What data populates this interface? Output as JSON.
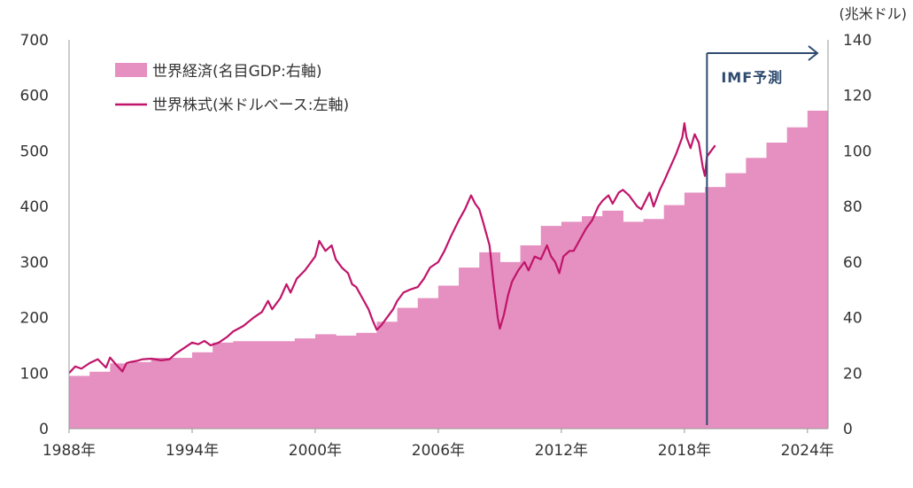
{
  "chart_data": {
    "type": "bar+line",
    "right_axis_unit": "(兆米ドル)",
    "left_axis": {
      "ylim": [
        0,
        700
      ],
      "ticks": [
        0,
        100,
        200,
        300,
        400,
        500,
        600,
        700
      ]
    },
    "right_axis": {
      "ylim": [
        0,
        140
      ],
      "ticks": [
        0,
        20,
        40,
        60,
        80,
        100,
        120,
        140
      ]
    },
    "x_axis": {
      "range": [
        1988,
        2025
      ],
      "ticks": [
        1988,
        1994,
        2000,
        2006,
        2012,
        2018,
        2024
      ],
      "tick_labels": [
        "1988年",
        "1994年",
        "2000年",
        "2006年",
        "2012年",
        "2018年",
        "2024年"
      ]
    },
    "legend": [
      {
        "label": "世界経済(名目GDP:右軸)",
        "kind": "area"
      },
      {
        "label": "世界株式(米ドルベース:左軸)",
        "kind": "line"
      }
    ],
    "colors": {
      "gdp": "#e590c0",
      "stock": "#c0146a",
      "annotation": "#2e4a6e",
      "axis": "#999999"
    },
    "annotation": {
      "text": "IMF予測",
      "year": 2019.1
    },
    "series": [
      {
        "name": "世界経済(名目GDP:右軸)",
        "axis": "right",
        "type": "step-area",
        "x": [
          1988,
          1989,
          1990,
          1991,
          1992,
          1993,
          1994,
          1995,
          1996,
          1997,
          1998,
          1999,
          2000,
          2001,
          2002,
          2003,
          2004,
          2005,
          2006,
          2007,
          2008,
          2009,
          2010,
          2011,
          2012,
          2013,
          2014,
          2015,
          2016,
          2017,
          2018,
          2019,
          2020,
          2021,
          2022,
          2023,
          2024
        ],
        "values": [
          19,
          20.5,
          23.5,
          24,
          25.5,
          25.5,
          27.5,
          31,
          31.5,
          31.5,
          31.5,
          32.5,
          34,
          33.5,
          34.5,
          38.5,
          43.5,
          47,
          51.5,
          58,
          63.5,
          60,
          66,
          73,
          74.5,
          76.5,
          78.5,
          74.5,
          75.5,
          80.5,
          85,
          87,
          92,
          97.5,
          103,
          108.5,
          114.5
        ]
      },
      {
        "name": "世界株式(米ドルベース:左軸)",
        "axis": "left",
        "type": "line",
        "x": [
          1988.0,
          1988.3,
          1988.6,
          1989.0,
          1989.4,
          1989.8,
          1990.0,
          1990.3,
          1990.6,
          1990.8,
          1991.0,
          1991.3,
          1991.6,
          1992.0,
          1992.5,
          1992.9,
          1993.2,
          1993.6,
          1994.0,
          1994.3,
          1994.6,
          1994.9,
          1995.3,
          1995.7,
          1996.0,
          1996.5,
          1997.0,
          1997.4,
          1997.7,
          1997.9,
          1998.3,
          1998.6,
          1998.8,
          1999.1,
          1999.5,
          1999.8,
          2000.0,
          2000.2,
          2000.5,
          2000.8,
          2001.0,
          2001.3,
          2001.6,
          2001.8,
          2002.0,
          2002.3,
          2002.6,
          2002.8,
          2003.0,
          2003.2,
          2003.5,
          2003.8,
          2004.0,
          2004.3,
          2004.6,
          2005.0,
          2005.3,
          2005.6,
          2006.0,
          2006.3,
          2006.6,
          2007.0,
          2007.3,
          2007.6,
          2007.8,
          2008.0,
          2008.2,
          2008.5,
          2008.7,
          2008.9,
          2009.0,
          2009.2,
          2009.4,
          2009.6,
          2009.9,
          2010.2,
          2010.4,
          2010.7,
          2011.0,
          2011.3,
          2011.5,
          2011.7,
          2011.9,
          2012.1,
          2012.4,
          2012.6,
          2012.9,
          2013.2,
          2013.5,
          2013.8,
          2014.0,
          2014.3,
          2014.5,
          2014.8,
          2015.0,
          2015.3,
          2015.5,
          2015.7,
          2015.9,
          2016.1,
          2016.3,
          2016.5,
          2016.8,
          2017.0,
          2017.3,
          2017.6,
          2017.9,
          2018.0,
          2018.1,
          2018.3,
          2018.5,
          2018.7,
          2018.9,
          2019.0,
          2019.1,
          2019.3,
          2019.5
        ],
        "values": [
          100,
          112,
          108,
          118,
          125,
          110,
          128,
          115,
          103,
          118,
          120,
          122,
          125,
          126,
          123,
          125,
          135,
          145,
          155,
          152,
          158,
          150,
          155,
          165,
          175,
          185,
          200,
          210,
          230,
          215,
          235,
          260,
          245,
          270,
          285,
          300,
          310,
          338,
          320,
          330,
          305,
          290,
          280,
          260,
          255,
          235,
          215,
          195,
          178,
          185,
          200,
          215,
          230,
          245,
          250,
          255,
          270,
          290,
          300,
          320,
          345,
          375,
          395,
          420,
          405,
          395,
          370,
          330,
          260,
          200,
          180,
          205,
          240,
          265,
          285,
          300,
          285,
          310,
          305,
          330,
          310,
          300,
          280,
          310,
          320,
          320,
          340,
          360,
          375,
          400,
          410,
          420,
          405,
          425,
          430,
          420,
          410,
          400,
          395,
          410,
          425,
          400,
          430,
          445,
          470,
          495,
          525,
          550,
          525,
          505,
          530,
          515,
          470,
          455,
          490,
          500,
          510
        ]
      }
    ]
  }
}
